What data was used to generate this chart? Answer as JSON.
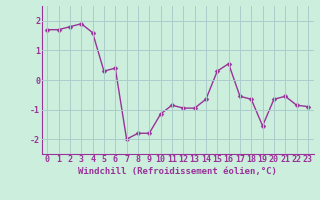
{
  "hours": [
    0,
    1,
    2,
    3,
    4,
    5,
    6,
    7,
    8,
    9,
    10,
    11,
    12,
    13,
    14,
    15,
    16,
    17,
    18,
    19,
    20,
    21,
    22,
    23
  ],
  "values": [
    1.7,
    1.7,
    1.8,
    1.9,
    1.6,
    0.3,
    0.4,
    -2.0,
    -1.8,
    -1.8,
    -1.15,
    -0.85,
    -0.95,
    -0.95,
    -0.65,
    0.3,
    0.55,
    -0.55,
    -0.65,
    -1.55,
    -0.65,
    -0.55,
    -0.85,
    -0.9
  ],
  "line_color": "#993399",
  "marker_color": "#993399",
  "bg_color": "#cceedd",
  "grid_color": "#aacccc",
  "xlabel": "Windchill (Refroidissement éolien,°C)",
  "ylim": [
    -2.5,
    2.5
  ],
  "xlim": [
    -0.5,
    23.5
  ],
  "yticks": [
    -2,
    -1,
    0,
    1,
    2
  ],
  "xtick_labels": [
    "0",
    "1",
    "2",
    "3",
    "4",
    "5",
    "6",
    "7",
    "8",
    "9",
    "10",
    "11",
    "12",
    "13",
    "14",
    "15",
    "16",
    "17",
    "18",
    "19",
    "20",
    "21",
    "22",
    "23"
  ],
  "label_fontsize": 6.5,
  "tick_fontsize": 6,
  "line_width": 1.0,
  "marker_size": 2.5
}
